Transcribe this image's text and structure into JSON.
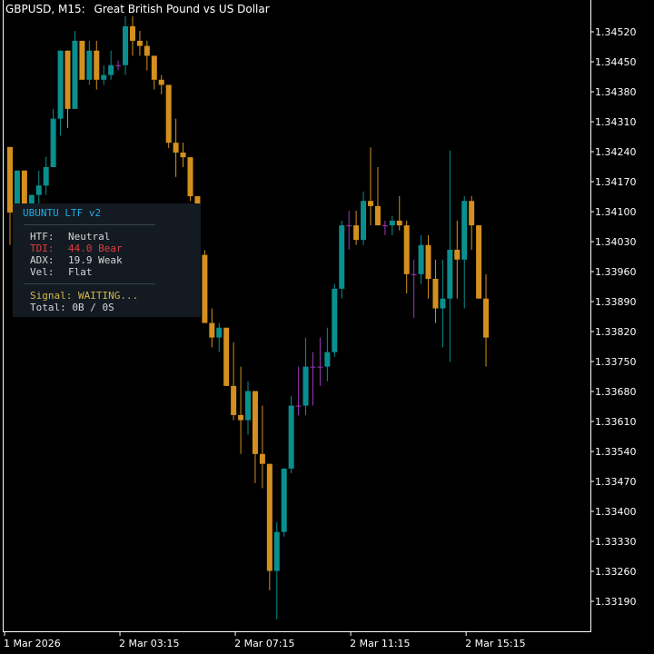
{
  "header": {
    "symbol": "GBPUSD, M15:",
    "description": "Great British Pound vs US Dollar"
  },
  "panel": {
    "title": "UBUNTU LTF v2",
    "rows": [
      {
        "label": "HTF:",
        "value": "Neutral"
      },
      {
        "label": "TDI:",
        "value": "44.0 Bear"
      },
      {
        "label": "ADX:",
        "value": "19.9 Weak"
      },
      {
        "label": "Vel:",
        "value": "Flat"
      }
    ],
    "signal": "Signal: WAITING...",
    "total": "Total: 0B / 0S",
    "colors": {
      "title": "#1ab0e6",
      "bear": "#e23c3c",
      "signal": "#d2b84c",
      "text": "#d6d6d6"
    }
  },
  "chart_data": {
    "type": "candlestick",
    "colors": {
      "bull": "#0a8f8f",
      "bear": "#d3901e",
      "doji": "#9a38b8",
      "axis": "#ffffff",
      "background": "#000000"
    },
    "ylim": [
      1.3315,
      1.3459
    ],
    "y_ticks": [
      "1.34520",
      "1.34450",
      "1.34380",
      "1.34310",
      "1.34240",
      "1.34170",
      "1.34100",
      "1.34030",
      "1.33960",
      "1.33890",
      "1.33820",
      "1.33750",
      "1.33680",
      "1.33610",
      "1.33540",
      "1.33470",
      "1.33400",
      "1.33330",
      "1.33260",
      "1.33190"
    ],
    "x_ticks": [
      {
        "label": "1 Mar 2026",
        "index": 0
      },
      {
        "label": "2 Mar 03:15",
        "index": 16
      },
      {
        "label": "2 Mar 07:15",
        "index": 32
      },
      {
        "label": "2 Mar 11:15",
        "index": 48
      },
      {
        "label": "2 Mar 15:15",
        "index": 64
      }
    ],
    "candles": [
      {
        "o": 1.34251,
        "h": 1.34251,
        "l": 1.34022,
        "c": 1.34098
      },
      {
        "o": 1.34098,
        "h": 1.34196,
        "l": 1.34022,
        "c": 1.34196
      },
      {
        "o": 1.34196,
        "h": 1.34196,
        "l": 1.33999,
        "c": 1.34053
      },
      {
        "o": 1.34053,
        "h": 1.34139,
        "l": 1.34022,
        "c": 1.34139
      },
      {
        "o": 1.34139,
        "h": 1.34196,
        "l": 1.34098,
        "c": 1.34161
      },
      {
        "o": 1.34161,
        "h": 1.34228,
        "l": 1.34139,
        "c": 1.34204
      },
      {
        "o": 1.34204,
        "h": 1.3434,
        "l": 1.34204,
        "c": 1.34317
      },
      {
        "o": 1.34317,
        "h": 1.34476,
        "l": 1.34278,
        "c": 1.34476
      },
      {
        "o": 1.34476,
        "h": 1.34476,
        "l": 1.34295,
        "c": 1.3434
      },
      {
        "o": 1.3434,
        "h": 1.34522,
        "l": 1.3434,
        "c": 1.34499
      },
      {
        "o": 1.34499,
        "h": 1.34499,
        "l": 1.34408,
        "c": 1.34408
      },
      {
        "o": 1.34408,
        "h": 1.34499,
        "l": 1.34396,
        "c": 1.34476
      },
      {
        "o": 1.34476,
        "h": 1.34499,
        "l": 1.34385,
        "c": 1.34408
      },
      {
        "o": 1.34408,
        "h": 1.34442,
        "l": 1.34396,
        "c": 1.34419
      },
      {
        "o": 1.34419,
        "h": 1.34476,
        "l": 1.34408,
        "c": 1.34442
      },
      {
        "o": 1.34442,
        "h": 1.34453,
        "l": 1.3443,
        "c": 1.34442
      },
      {
        "o": 1.34442,
        "h": 1.34556,
        "l": 1.34419,
        "c": 1.34533
      },
      {
        "o": 1.34533,
        "h": 1.34556,
        "l": 1.34464,
        "c": 1.34499
      },
      {
        "o": 1.34499,
        "h": 1.34522,
        "l": 1.34464,
        "c": 1.34487
      },
      {
        "o": 1.34487,
        "h": 1.34499,
        "l": 1.3443,
        "c": 1.34464
      },
      {
        "o": 1.34464,
        "h": 1.34464,
        "l": 1.34385,
        "c": 1.34408
      },
      {
        "o": 1.34408,
        "h": 1.34419,
        "l": 1.34374,
        "c": 1.34396
      },
      {
        "o": 1.34396,
        "h": 1.34396,
        "l": 1.34249,
        "c": 1.34261
      },
      {
        "o": 1.34261,
        "h": 1.34317,
        "l": 1.34181,
        "c": 1.34238
      },
      {
        "o": 1.34238,
        "h": 1.34261,
        "l": 1.34204,
        "c": 1.34227
      },
      {
        "o": 1.34227,
        "h": 1.34227,
        "l": 1.34125,
        "c": 1.34136
      },
      {
        "o": 1.34136,
        "h": 1.34136,
        "l": 1.33976,
        "c": 1.33999
      },
      {
        "o": 1.33999,
        "h": 1.3401,
        "l": 1.3384,
        "c": 1.3384
      },
      {
        "o": 1.3384,
        "h": 1.33874,
        "l": 1.33783,
        "c": 1.33806
      },
      {
        "o": 1.33806,
        "h": 1.3384,
        "l": 1.33772,
        "c": 1.33829
      },
      {
        "o": 1.33829,
        "h": 1.33829,
        "l": 1.33693,
        "c": 1.33693
      },
      {
        "o": 1.33693,
        "h": 1.33795,
        "l": 1.33613,
        "c": 1.33625
      },
      {
        "o": 1.33625,
        "h": 1.33738,
        "l": 1.33534,
        "c": 1.33613
      },
      {
        "o": 1.33613,
        "h": 1.33704,
        "l": 1.33579,
        "c": 1.33681
      },
      {
        "o": 1.33681,
        "h": 1.33681,
        "l": 1.33466,
        "c": 1.33534
      },
      {
        "o": 1.33534,
        "h": 1.33647,
        "l": 1.33454,
        "c": 1.33511
      },
      {
        "o": 1.33511,
        "h": 1.33511,
        "l": 1.33216,
        "c": 1.33261
      },
      {
        "o": 1.33261,
        "h": 1.33375,
        "l": 1.33148,
        "c": 1.33352
      },
      {
        "o": 1.33352,
        "h": 1.335,
        "l": 1.33341,
        "c": 1.335
      },
      {
        "o": 1.335,
        "h": 1.3367,
        "l": 1.33489,
        "c": 1.33647
      },
      {
        "o": 1.33647,
        "h": 1.33738,
        "l": 1.33625,
        "c": 1.33647
      },
      {
        "o": 1.33647,
        "h": 1.33806,
        "l": 1.33625,
        "c": 1.33738
      },
      {
        "o": 1.33738,
        "h": 1.33772,
        "l": 1.33647,
        "c": 1.33738
      },
      {
        "o": 1.33738,
        "h": 1.33806,
        "l": 1.33693,
        "c": 1.33738
      },
      {
        "o": 1.33738,
        "h": 1.33829,
        "l": 1.33704,
        "c": 1.33772
      },
      {
        "o": 1.33772,
        "h": 1.33931,
        "l": 1.33761,
        "c": 1.3392
      },
      {
        "o": 1.3392,
        "h": 1.34079,
        "l": 1.33897,
        "c": 1.34068
      },
      {
        "o": 1.34068,
        "h": 1.34102,
        "l": 1.34011,
        "c": 1.34068
      },
      {
        "o": 1.34068,
        "h": 1.34102,
        "l": 1.34022,
        "c": 1.34034
      },
      {
        "o": 1.34034,
        "h": 1.34147,
        "l": 1.34022,
        "c": 1.34125
      },
      {
        "o": 1.34125,
        "h": 1.3425,
        "l": 1.34068,
        "c": 1.34113
      },
      {
        "o": 1.34113,
        "h": 1.34204,
        "l": 1.34068,
        "c": 1.34068
      },
      {
        "o": 1.34068,
        "h": 1.34079,
        "l": 1.34045,
        "c": 1.34068
      },
      {
        "o": 1.34068,
        "h": 1.3409,
        "l": 1.34045,
        "c": 1.34079
      },
      {
        "o": 1.34079,
        "h": 1.34136,
        "l": 1.34056,
        "c": 1.34068
      },
      {
        "o": 1.34068,
        "h": 1.34079,
        "l": 1.33909,
        "c": 1.33954
      },
      {
        "o": 1.33954,
        "h": 1.33988,
        "l": 1.33852,
        "c": 1.33954
      },
      {
        "o": 1.33954,
        "h": 1.34045,
        "l": 1.33931,
        "c": 1.34022
      },
      {
        "o": 1.34022,
        "h": 1.34045,
        "l": 1.33897,
        "c": 1.33943
      },
      {
        "o": 1.33943,
        "h": 1.33988,
        "l": 1.3384,
        "c": 1.33874
      },
      {
        "o": 1.33874,
        "h": 1.33988,
        "l": 1.33783,
        "c": 1.33897
      },
      {
        "o": 1.33897,
        "h": 1.34243,
        "l": 1.33749,
        "c": 1.34011
      },
      {
        "o": 1.34011,
        "h": 1.34079,
        "l": 1.33897,
        "c": 1.33988
      },
      {
        "o": 1.33988,
        "h": 1.34136,
        "l": 1.33874,
        "c": 1.34125
      },
      {
        "o": 1.34125,
        "h": 1.34136,
        "l": 1.34011,
        "c": 1.34068
      },
      {
        "o": 1.34068,
        "h": 1.34068,
        "l": 1.33897,
        "c": 1.33897
      },
      {
        "o": 1.33897,
        "h": 1.33954,
        "l": 1.33738,
        "c": 1.33806
      }
    ]
  }
}
